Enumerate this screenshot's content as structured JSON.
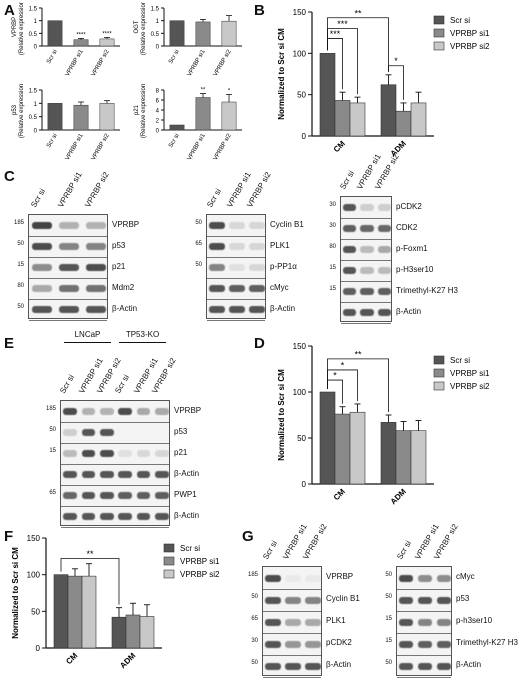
{
  "panels": {
    "A": "A",
    "B": "B",
    "C": "C",
    "D": "D",
    "E": "E",
    "F": "F",
    "G": "G"
  },
  "colors": {
    "dark": "#555555",
    "mid": "#8a8a8a",
    "light": "#c8c8c8"
  },
  "chart_data": [
    {
      "id": "A1",
      "type": "bar",
      "ylabel": "VPRBP\n(Relative expression)",
      "categories": [
        "Scr si",
        "VPRBP si1",
        "VPRBP si2"
      ],
      "values": [
        1.0,
        0.25,
        0.28
      ],
      "errors": [
        0,
        0.05,
        0.06
      ],
      "ylim": [
        0,
        1.5
      ],
      "yticks": [
        "0",
        "0.5",
        "1",
        "1.5"
      ],
      "sig": [
        "",
        "****",
        "****"
      ]
    },
    {
      "id": "A2",
      "type": "bar",
      "ylabel": "OGT\n(Relative expression)",
      "categories": [
        "Scr si",
        "VPRBP si1",
        "VPRBP si2"
      ],
      "values": [
        1.0,
        0.95,
        0.98
      ],
      "errors": [
        0,
        0.1,
        0.22
      ],
      "ylim": [
        0,
        1.5
      ],
      "yticks": [
        "0",
        "0.5",
        "1",
        "1.5"
      ],
      "sig": [
        "",
        "",
        ""
      ]
    },
    {
      "id": "A3",
      "type": "bar",
      "ylabel": "p53\n(Relative expression)",
      "categories": [
        "Scr si",
        "VPRBP si1",
        "VPRBP si2"
      ],
      "values": [
        1.0,
        0.93,
        1.0
      ],
      "errors": [
        0,
        0.12,
        0.1
      ],
      "ylim": [
        0,
        1.5
      ],
      "yticks": [
        "0",
        "0.5",
        "1",
        "1.5"
      ],
      "sig": [
        "",
        "",
        ""
      ]
    },
    {
      "id": "A4",
      "type": "bar",
      "ylabel": "p21\n(Relative expression)",
      "categories": [
        "Scr si",
        "VPRBP si1",
        "VPRBP si2"
      ],
      "values": [
        1.0,
        6.5,
        5.6
      ],
      "errors": [
        0,
        0.8,
        1.5
      ],
      "ylim": [
        0,
        8
      ],
      "yticks": [
        "0",
        "2",
        "4",
        "6",
        "8"
      ],
      "sig": [
        "",
        "**",
        "*"
      ]
    },
    {
      "id": "B",
      "type": "bar",
      "ylabel": "Normalized to Scr si CM",
      "categories": [
        "CM",
        "ADM"
      ],
      "series": [
        {
          "name": "Scr si",
          "values": [
            100,
            62
          ],
          "errors": [
            0,
            12
          ]
        },
        {
          "name": "VPRBP si1",
          "values": [
            43,
            30
          ],
          "errors": [
            10,
            10
          ]
        },
        {
          "name": "VPRBP si2",
          "values": [
            40,
            40
          ],
          "errors": [
            7,
            13
          ]
        }
      ],
      "ylim": [
        0,
        150
      ],
      "yticks": [
        "0",
        "50",
        "100",
        "150"
      ],
      "sig": [
        "***",
        "***",
        "**",
        "*"
      ]
    },
    {
      "id": "D",
      "type": "bar",
      "ylabel": "Normalized to Scr si CM",
      "categories": [
        "CM",
        "ADM"
      ],
      "series": [
        {
          "name": "Scr si",
          "values": [
            100,
            67
          ],
          "errors": [
            0,
            8
          ]
        },
        {
          "name": "VPRBP si1",
          "values": [
            76,
            58
          ],
          "errors": [
            8,
            10
          ]
        },
        {
          "name": "VPRBP si2",
          "values": [
            78,
            58
          ],
          "errors": [
            9,
            11
          ]
        }
      ],
      "ylim": [
        0,
        150
      ],
      "yticks": [
        "0",
        "50",
        "100",
        "150"
      ],
      "sig": [
        "*",
        "*",
        "**"
      ]
    },
    {
      "id": "F",
      "type": "bar",
      "ylabel": "Normalized to Scr si CM",
      "categories": [
        "CM",
        "ADM"
      ],
      "series": [
        {
          "name": "Scr si",
          "values": [
            100,
            42
          ],
          "errors": [
            0,
            13
          ]
        },
        {
          "name": "VPRBP si1",
          "values": [
            98,
            45
          ],
          "errors": [
            10,
            16
          ]
        },
        {
          "name": "VPRBP si2",
          "values": [
            98,
            43
          ],
          "errors": [
            17,
            16
          ]
        }
      ],
      "ylim": [
        0,
        150
      ],
      "yticks": [
        "0",
        "50",
        "100",
        "150"
      ],
      "sig": [
        "**"
      ]
    }
  ],
  "blots": {
    "lanes3": [
      "Scr si",
      "VPRBP si1",
      "VPRBP si2"
    ],
    "C1": {
      "rows": [
        "VPRBP",
        "p53",
        "p21",
        "Mdm2",
        "β-Actin"
      ],
      "mw": [
        "185",
        "50",
        "15",
        "80",
        "50"
      ]
    },
    "C2": {
      "rows": [
        "Cyclin B1",
        "PLK1",
        "p-PP1α",
        "cMyc",
        "β-Actin"
      ],
      "mw": [
        "50",
        "65",
        "50",
        "",
        ""
      ]
    },
    "C3": {
      "rows": [
        "pCDK2",
        "CDK2",
        "p-Foxm1",
        "p-H3ser10",
        "Trimethyl-K27 H3",
        "β-Actin"
      ],
      "mw": [
        "30",
        "30",
        "80",
        "15",
        "15",
        ""
      ]
    },
    "E": {
      "lanes": [
        "Scr si",
        "VPRBP si1",
        "VPRBP si2",
        "Scr si",
        "VPRBP si1",
        "VPRBP si2"
      ],
      "groups": [
        "LNCaP",
        "TP53-KO"
      ],
      "rows": [
        "VPRBP",
        "p53",
        "p21",
        "β-Actin",
        "PWP1",
        "β-Actin"
      ],
      "mw": [
        "185",
        "50",
        "15",
        "",
        "65",
        ""
      ]
    },
    "G1": {
      "rows": [
        "VPRBP",
        "Cyclin B1",
        "PLK1",
        "pCDK2",
        "β-Actin"
      ],
      "mw": [
        "185",
        "50",
        "65",
        "30",
        "50"
      ]
    },
    "G2": {
      "rows": [
        "cMyc",
        "p53",
        "p-h3ser10",
        "Trimethyl-K27 H3",
        "β-Actin"
      ],
      "mw": [
        "50",
        "50",
        "15",
        "15",
        "50"
      ]
    }
  }
}
